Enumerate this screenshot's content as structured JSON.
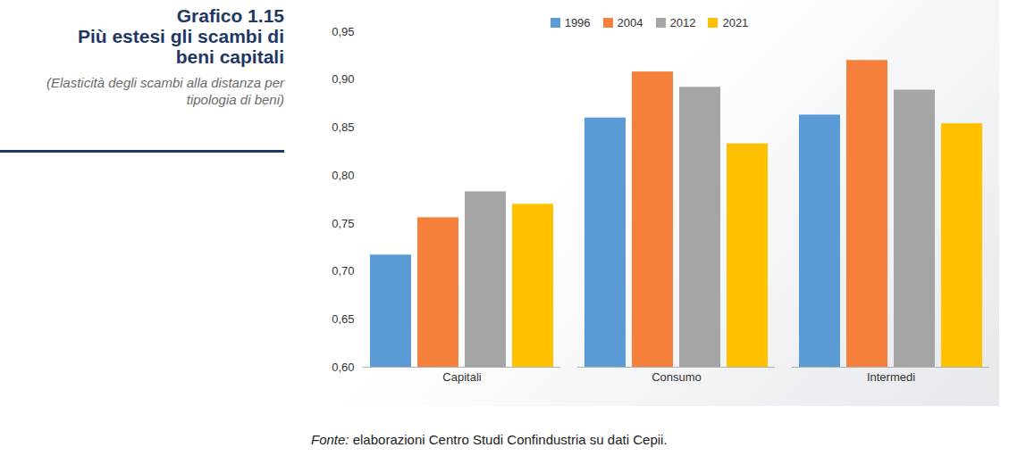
{
  "chart_data": {
    "type": "bar",
    "figure_label": "Grafico 1.15",
    "title": "Più estesi gli scambi di beni capitali",
    "subtitle": "(Elasticità degli scambi alla distanza per tipologia di beni)",
    "caption": "Fonte: elaborazioni Centro Studi Confindustria su dati Cepii.",
    "categories": [
      "Capitali",
      "Consumo",
      "Intermedi"
    ],
    "series": [
      {
        "name": "1996",
        "color": "#5b9bd5",
        "values": [
          0.717,
          0.86,
          0.863
        ]
      },
      {
        "name": "2004",
        "color": "#f4803b",
        "values": [
          0.756,
          0.908,
          0.92
        ]
      },
      {
        "name": "2012",
        "color": "#a5a5a5",
        "values": [
          0.783,
          0.892,
          0.889
        ]
      },
      {
        "name": "2021",
        "color": "#ffc000",
        "values": [
          0.77,
          0.833,
          0.854
        ]
      }
    ],
    "ylim": [
      0.6,
      0.95
    ],
    "yticks": [
      {
        "value": 0.6,
        "label": "0,60"
      },
      {
        "value": 0.65,
        "label": "0,65"
      },
      {
        "value": 0.7,
        "label": "0,70"
      },
      {
        "value": 0.75,
        "label": "0,75"
      },
      {
        "value": 0.8,
        "label": "0,80"
      },
      {
        "value": 0.85,
        "label": "0,85"
      },
      {
        "value": 0.9,
        "label": "0,90"
      },
      {
        "value": 0.95,
        "label": "0,95"
      }
    ],
    "grid": false,
    "legend": "top"
  }
}
